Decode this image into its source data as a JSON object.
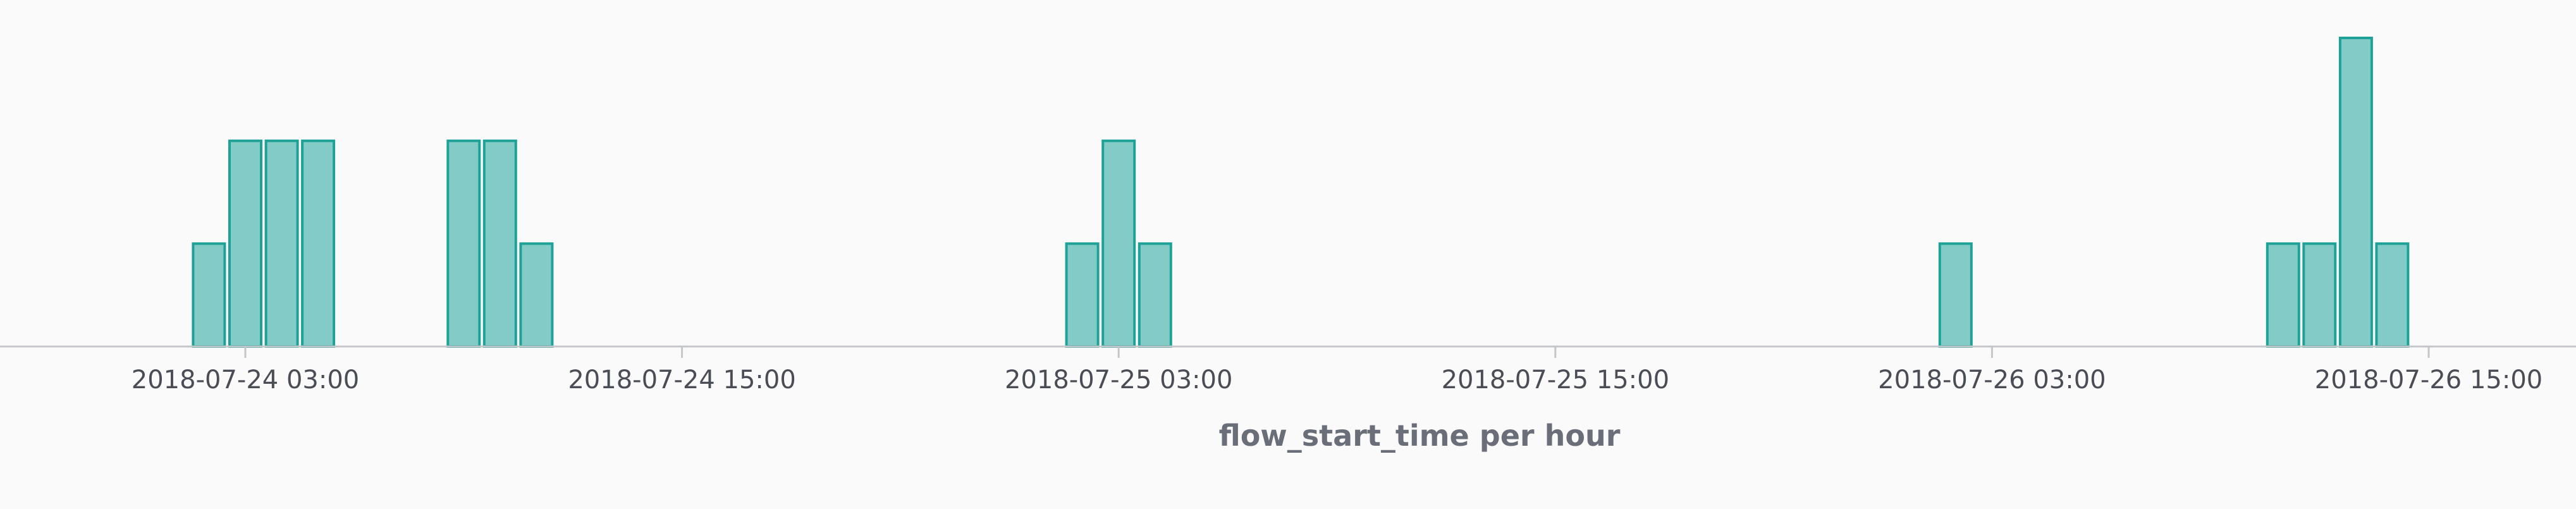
{
  "chart_data": {
    "type": "bar",
    "xlabel": "flow_start_time per hour",
    "x_unit": "hour",
    "x_ticks": [
      "2018-07-24 03:00",
      "2018-07-24 15:00",
      "2018-07-25 03:00",
      "2018-07-25 15:00",
      "2018-07-26 03:00",
      "2018-07-26 15:00"
    ],
    "ylim": [
      0,
      3
    ],
    "grid": false,
    "legend": "none",
    "colors": {
      "bar_fill": "#82cbc7",
      "bar_stroke": "#1ea297",
      "axis_line": "#c4c6ca",
      "background": "#fafafa"
    },
    "bars": [
      {
        "x": "2018-07-24 02:00",
        "value": 1
      },
      {
        "x": "2018-07-24 03:00",
        "value": 2
      },
      {
        "x": "2018-07-24 04:00",
        "value": 2
      },
      {
        "x": "2018-07-24 05:00",
        "value": 2
      },
      {
        "x": "2018-07-24 09:00",
        "value": 2
      },
      {
        "x": "2018-07-24 10:00",
        "value": 2
      },
      {
        "x": "2018-07-24 11:00",
        "value": 1
      },
      {
        "x": "2018-07-25 02:00",
        "value": 1
      },
      {
        "x": "2018-07-25 03:00",
        "value": 2
      },
      {
        "x": "2018-07-25 04:00",
        "value": 1
      },
      {
        "x": "2018-07-26 02:00",
        "value": 1
      },
      {
        "x": "2018-07-26 11:00",
        "value": 1
      },
      {
        "x": "2018-07-26 12:00",
        "value": 1
      },
      {
        "x": "2018-07-26 13:00",
        "value": 3
      },
      {
        "x": "2018-07-26 14:00",
        "value": 1
      }
    ]
  }
}
